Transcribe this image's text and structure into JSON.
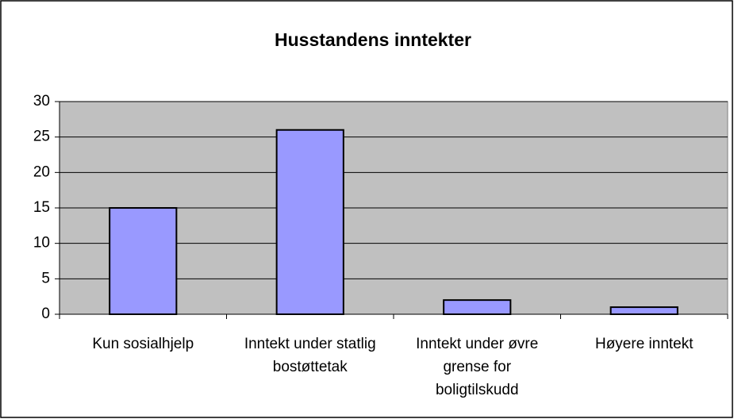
{
  "chart_data": {
    "type": "bar",
    "title": "Husstandens inntekter",
    "categories": [
      "Kun sosialhjelp",
      "Inntekt under statlig bostøttetak",
      "Inntekt under øvre grense for boligtilskudd",
      "Høyere inntekt"
    ],
    "values": [
      15,
      26,
      2,
      1
    ],
    "color": "#9999ff",
    "ylim": [
      0,
      30
    ],
    "yticks": [
      0,
      5,
      10,
      15,
      20,
      25,
      30
    ],
    "grid": true
  }
}
